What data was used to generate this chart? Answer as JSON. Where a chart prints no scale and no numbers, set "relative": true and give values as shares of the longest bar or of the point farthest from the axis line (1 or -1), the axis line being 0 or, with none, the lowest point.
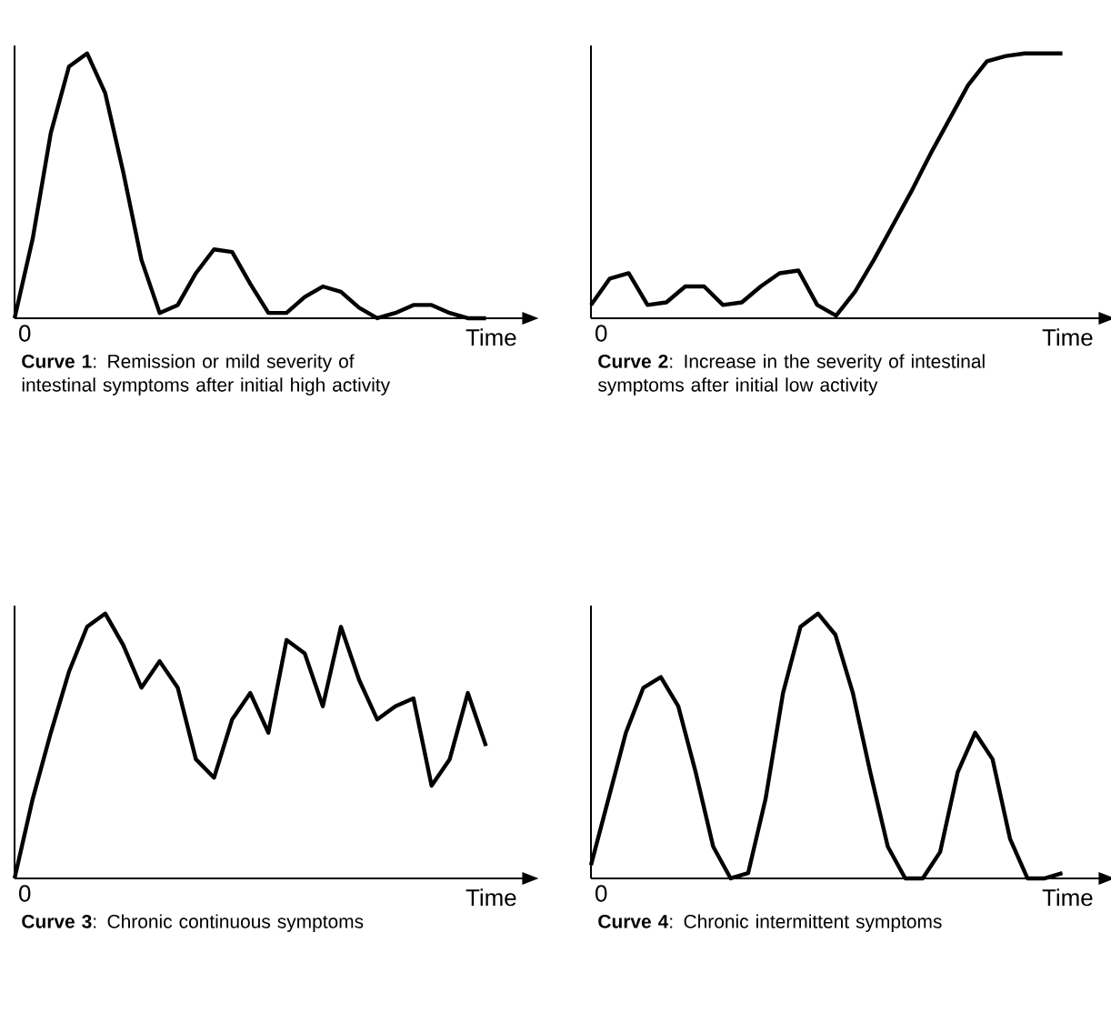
{
  "chart_data": [
    {
      "type": "line",
      "title": "**Curve 1**: Remission or mild severity of intestinal symptoms after initial high activity",
      "xlabel": "Time",
      "annotations": [
        "0"
      ],
      "relative": true,
      "marker": "none",
      "categories": [
        null,
        null,
        null,
        null,
        null,
        null,
        null,
        null,
        null,
        null,
        null,
        null,
        null,
        null,
        null,
        null,
        null,
        null,
        null,
        null,
        null,
        null,
        null,
        null,
        null,
        null,
        null
      ],
      "color": "#000000",
      "values": [
        0,
        0.3,
        0.7,
        0.95,
        1,
        0.85,
        0.55,
        0.22,
        0.02,
        0.05,
        0.17,
        0.26,
        0.25,
        0.13,
        0.02,
        0.02,
        0.08,
        0.12,
        0.1,
        0.04,
        0,
        0.02,
        0.05,
        0.05,
        0.02,
        0,
        0
      ]
    },
    {
      "type": "line",
      "title": "**Curve 2**: Increase in the severity of intestinal symptoms after initial low activity",
      "xlabel": "Time",
      "annotations": [
        "0"
      ],
      "relative": true,
      "marker": "none",
      "categories": [
        null,
        null,
        null,
        null,
        null,
        null,
        null,
        null,
        null,
        null,
        null,
        null,
        null,
        null,
        null,
        null,
        null,
        null,
        null,
        null,
        null,
        null,
        null,
        null,
        null,
        null
      ],
      "color": "#000000",
      "values": [
        0.05,
        0.15,
        0.17,
        0.05,
        0.06,
        0.12,
        0.12,
        0.05,
        0.06,
        0.12,
        0.17,
        0.18,
        0.05,
        0.01,
        0.1,
        0.22,
        0.35,
        0.48,
        0.62,
        0.75,
        0.88,
        0.97,
        0.99,
        1,
        1,
        1
      ]
    },
    {
      "type": "line",
      "title": "**Curve 3**: Chronic continuous symptoms",
      "xlabel": "Time",
      "annotations": [
        "0"
      ],
      "relative": true,
      "marker": "none",
      "categories": [
        null,
        null,
        null,
        null,
        null,
        null,
        null,
        null,
        null,
        null,
        null,
        null,
        null,
        null,
        null,
        null,
        null,
        null,
        null,
        null,
        null,
        null,
        null,
        null,
        null,
        null,
        null
      ],
      "color": "#000000",
      "values": [
        0,
        0.3,
        0.55,
        0.78,
        0.95,
        1,
        0.88,
        0.72,
        0.82,
        0.72,
        0.45,
        0.38,
        0.6,
        0.7,
        0.55,
        0.9,
        0.85,
        0.65,
        0.95,
        0.75,
        0.6,
        0.65,
        0.68,
        0.35,
        0.45,
        0.7,
        0.5
      ]
    },
    {
      "type": "line",
      "title": "**Curve 4**: Chronic intermittent symptoms",
      "xlabel": "Time",
      "annotations": [
        "0"
      ],
      "relative": true,
      "marker": "none",
      "categories": [
        null,
        null,
        null,
        null,
        null,
        null,
        null,
        null,
        null,
        null,
        null,
        null,
        null,
        null,
        null,
        null,
        null,
        null,
        null,
        null,
        null,
        null,
        null,
        null,
        null,
        null,
        null,
        null
      ],
      "color": "#000000",
      "values": [
        0.05,
        0.3,
        0.55,
        0.72,
        0.76,
        0.65,
        0.4,
        0.12,
        0,
        0.02,
        0.3,
        0.7,
        0.95,
        1,
        0.92,
        0.7,
        0.4,
        0.12,
        0,
        0,
        0.1,
        0.4,
        0.55,
        0.45,
        0.15,
        0,
        0,
        0.02
      ]
    }
  ]
}
